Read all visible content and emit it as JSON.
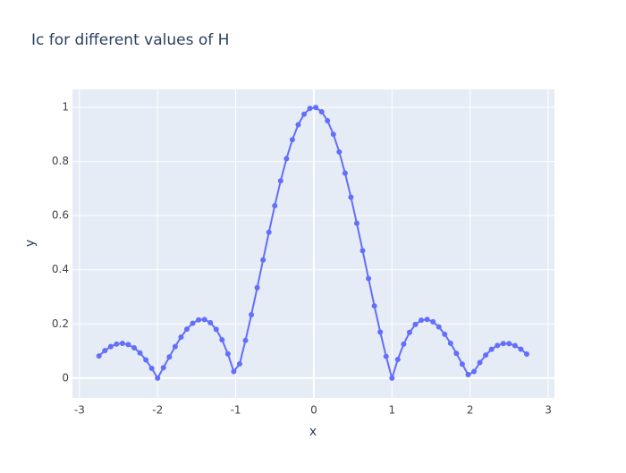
{
  "chart_data": {
    "type": "line",
    "title": "Ic for different values of H",
    "x_label": "x",
    "y_label": "y",
    "x": [
      -2.75,
      -2.675,
      -2.6,
      -2.525,
      -2.45,
      -2.375,
      -2.3,
      -2.225,
      -2.15,
      -2.075,
      -2.0,
      -1.925,
      -1.85,
      -1.775,
      -1.7,
      -1.625,
      -1.55,
      -1.475,
      -1.4,
      -1.325,
      -1.25,
      -1.175,
      -1.1,
      -1.025,
      -0.95,
      -0.875,
      -0.8,
      -0.725,
      -0.65,
      -0.575,
      -0.5,
      -0.425,
      -0.35,
      -0.275,
      -0.2,
      -0.125,
      -0.05,
      0.025,
      0.1,
      0.175,
      0.25,
      0.325,
      0.4,
      0.475,
      0.55,
      0.625,
      0.7,
      0.775,
      0.85,
      0.925,
      1.0,
      1.075,
      1.15,
      1.225,
      1.3,
      1.375,
      1.45,
      1.525,
      1.6,
      1.675,
      1.75,
      1.825,
      1.9,
      1.975,
      2.05,
      2.125,
      2.2,
      2.275,
      2.35,
      2.425,
      2.5,
      2.575,
      2.65,
      2.725
    ],
    "series": [
      {
        "color": "#636efa",
        "values": [
          0.0819,
          0.1015,
          0.1164,
          0.1257,
          0.1283,
          0.1238,
          0.112,
          0.0929,
          0.0672,
          0.0358,
          0,
          0.0386,
          0.0781,
          0.1165,
          0.1515,
          0.181,
          0.2028,
          0.2151,
          0.2162,
          0.2048,
          0.1801,
          0.1416,
          0.0894,
          0.0244,
          0.0524,
          0.1392,
          0.2339,
          0.3338,
          0.4363,
          0.5384,
          0.6366,
          0.7283,
          0.8103,
          0.8802,
          0.9355,
          0.9745,
          0.9959,
          0.999,
          0.9836,
          0.9504,
          0.9003,
          0.8351,
          0.7568,
          0.668,
          0.5716,
          0.4705,
          0.3679,
          0.2667,
          0.17,
          0.0803,
          0,
          0.0691,
          0.1257,
          0.1687,
          0.1981,
          0.2139,
          0.2168,
          0.2081,
          0.1892,
          0.162,
          0.1286,
          0.0911,
          0.0518,
          0.0127,
          0.0243,
          0.0573,
          0.085,
          0.1064,
          0.1207,
          0.1276,
          0.1273,
          0.1202,
          0.107,
          0.0888
        ]
      }
    ],
    "xlim": [
      -3.09,
      3.08
    ],
    "xticks": [
      -3,
      -2,
      -1,
      0,
      1,
      2,
      3
    ],
    "ylim": [
      -0.073,
      1.066
    ],
    "yticks": [
      0,
      0.2,
      0.4,
      0.6,
      0.8,
      1
    ],
    "grid": true
  }
}
